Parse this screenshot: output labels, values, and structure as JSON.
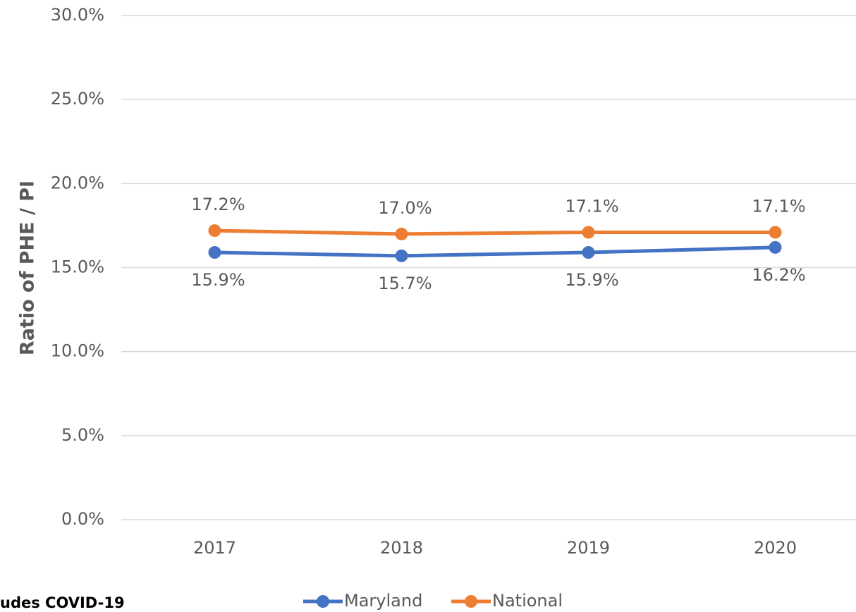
{
  "chart_data": {
    "type": "line",
    "y_axis_label": "Ratio of PHE / PI",
    "note": "udes COVID-19",
    "categories": [
      "2017",
      "2018",
      "2019",
      "2020"
    ],
    "series": [
      {
        "name": "Maryland",
        "color": "#4472c4",
        "values": [
          15.9,
          15.7,
          15.9,
          16.2
        ],
        "value_labels": [
          "15.9%",
          "15.7%",
          "15.9%",
          "16.2%"
        ]
      },
      {
        "name": "National",
        "color": "#ed7d31",
        "values": [
          17.2,
          17.0,
          17.1,
          17.1
        ],
        "value_labels": [
          "17.2%",
          "17.0%",
          "17.1%",
          "17.1%"
        ]
      }
    ],
    "ylim": [
      0,
      30
    ],
    "yticks": [
      {
        "value": 0,
        "label": "0.0%"
      },
      {
        "value": 5,
        "label": "5.0%"
      },
      {
        "value": 10,
        "label": "10.0%"
      },
      {
        "value": 15,
        "label": "15.0%"
      },
      {
        "value": 20,
        "label": "20.0%"
      },
      {
        "value": 25,
        "label": "25.0%"
      },
      {
        "value": 30,
        "label": "30.0%"
      }
    ],
    "grid": true,
    "legend": "bottom"
  }
}
